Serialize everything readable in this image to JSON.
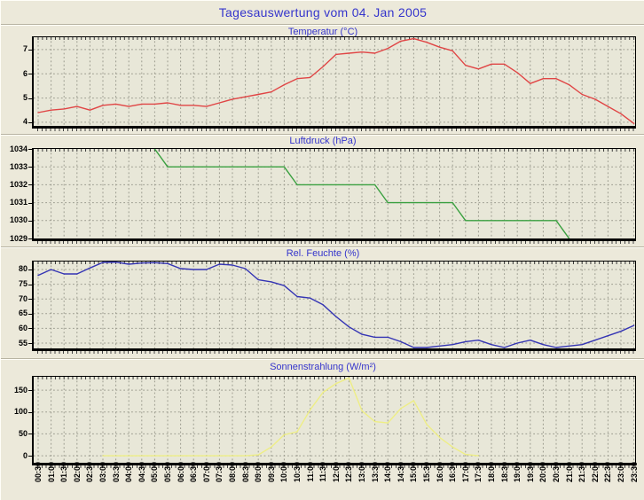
{
  "header": {
    "title": "Tagesauswertung vom 04. Jan 2005"
  },
  "colors": {
    "accent_blue": "#3535cc",
    "background": "#ece9da",
    "plot_background": "#e8e7d8",
    "grid": "#9b9b8e",
    "temperature_line": "#e04545",
    "pressure_line": "#3aa040",
    "humidity_line": "#3434b4",
    "radiation_line": "#eeee85"
  },
  "chart_data": {
    "type": "line",
    "x_tick_interval": "30 min",
    "categories": [
      "00:30",
      "01:00",
      "01:30",
      "02:00",
      "02:30",
      "03:00",
      "03:30",
      "04:00",
      "04:30",
      "05:00",
      "05:30",
      "06:00",
      "06:30",
      "07:00",
      "07:30",
      "08:00",
      "08:30",
      "09:00",
      "09:30",
      "10:00",
      "10:30",
      "11:00",
      "11:30",
      "12:00",
      "12:30",
      "13:00",
      "13:30",
      "14:00",
      "14:30",
      "15:00",
      "15:30",
      "16:00",
      "16:30",
      "17:00",
      "17:30",
      "18:00",
      "18:30",
      "19:00",
      "19:30",
      "20:00",
      "20:30",
      "21:00",
      "21:30",
      "22:00",
      "22:30",
      "23:00",
      "23:30"
    ],
    "charts": [
      {
        "id": "temperature",
        "type": "line",
        "title": "Temperatur (°C)",
        "color": "#e04545",
        "ylim": [
          3.85,
          7.51
        ],
        "yticks": [
          {
            "v": 7,
            "label": "7"
          },
          {
            "v": 6,
            "label": "6"
          },
          {
            "v": 5,
            "label": "5"
          },
          {
            "v": 4,
            "label": "4"
          }
        ],
        "values": [
          4.4,
          4.5,
          4.55,
          4.65,
          4.5,
          4.7,
          4.75,
          4.65,
          4.75,
          4.75,
          4.8,
          4.7,
          4.7,
          4.65,
          4.8,
          4.95,
          5.05,
          5.15,
          5.25,
          5.55,
          5.8,
          5.85,
          6.3,
          6.8,
          6.85,
          6.9,
          6.85,
          7.05,
          7.35,
          7.45,
          7.3,
          7.1,
          6.95,
          6.35,
          6.2,
          6.4,
          6.4,
          6.05,
          5.6,
          5.8,
          5.8,
          5.55,
          5.15,
          4.95,
          4.65,
          4.35,
          3.95
        ]
      },
      {
        "id": "pressure",
        "type": "line",
        "title": "Luftdruck (hPa)",
        "color": "#3aa040",
        "ylim": [
          1029,
          1034
        ],
        "yticks": [
          {
            "v": 1034,
            "label": "1034"
          },
          {
            "v": 1033,
            "label": "1033"
          },
          {
            "v": 1032,
            "label": "1032"
          },
          {
            "v": 1031,
            "label": "1031"
          },
          {
            "v": 1030,
            "label": "1030"
          },
          {
            "v": 1029,
            "label": "1029"
          }
        ],
        "values": [
          null,
          null,
          null,
          null,
          null,
          null,
          null,
          null,
          null,
          1034,
          1033,
          1033,
          1033,
          1033,
          1033,
          1033,
          1033,
          1033,
          1033,
          1033,
          1032,
          1032,
          1032,
          1032,
          1032,
          1032,
          1032,
          1031,
          1031,
          1031,
          1031,
          1031,
          1031,
          1030,
          1030,
          1030,
          1030,
          1030,
          1030,
          1030,
          1030,
          1029,
          null,
          null,
          null,
          null,
          null
        ]
      },
      {
        "id": "humidity",
        "type": "line",
        "title": "Rel. Feuchte (%)",
        "color": "#3434b4",
        "ylim": [
          53.2,
          82.7
        ],
        "yticks": [
          {
            "v": 80,
            "label": "80"
          },
          {
            "v": 75,
            "label": "75"
          },
          {
            "v": 70,
            "label": "70"
          },
          {
            "v": 65,
            "label": "65"
          },
          {
            "v": 60,
            "label": "60"
          },
          {
            "v": 55,
            "label": "55"
          }
        ],
        "values": [
          78,
          80,
          78.5,
          78.5,
          80.5,
          82.4,
          82.5,
          81.8,
          82.2,
          82.3,
          82,
          80.3,
          80,
          80,
          81.8,
          81.5,
          80.3,
          76.5,
          75.8,
          74.5,
          70.8,
          70.3,
          68,
          64,
          60.5,
          58,
          57,
          57,
          55.5,
          53.5,
          53.5,
          54,
          54.5,
          55.5,
          56,
          54.5,
          53.5,
          55,
          56,
          54.5,
          53.5,
          54,
          54.5,
          56,
          57.5,
          59,
          61
        ]
      },
      {
        "id": "radiation",
        "type": "line",
        "title": "Sonnenstrahlung (W/m²)",
        "color": "#eeee85",
        "ylim": [
          -16,
          180.5
        ],
        "yticks": [
          {
            "v": 150,
            "label": "150"
          },
          {
            "v": 100,
            "label": "100"
          },
          {
            "v": 50,
            "label": "50"
          },
          {
            "v": 0,
            "label": "0"
          }
        ],
        "values": [
          null,
          null,
          null,
          null,
          null,
          0,
          0,
          0,
          0,
          0,
          0,
          0,
          0,
          0,
          0,
          0,
          0,
          2,
          20,
          48,
          55,
          105,
          145,
          165,
          178,
          103,
          78,
          75,
          108,
          126,
          72,
          42,
          20,
          3,
          0,
          null,
          null,
          null,
          null,
          null,
          null,
          null,
          null,
          null,
          null,
          null,
          null
        ]
      }
    ]
  }
}
